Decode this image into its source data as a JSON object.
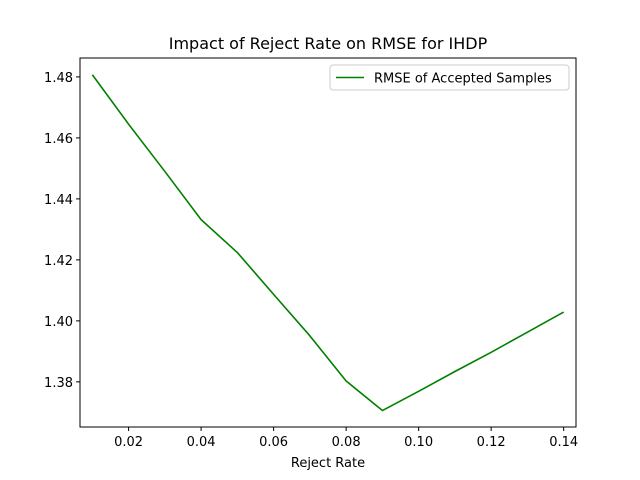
{
  "chart_data": {
    "type": "line",
    "title": "Impact of Reject Rate on RMSE for IHDP",
    "xlabel": "Reject Rate",
    "ylabel": "",
    "xlim": [
      0.0066,
      0.1434
    ],
    "ylim": [
      1.3652,
      1.4862
    ],
    "xticks": [
      0.02,
      0.04,
      0.06,
      0.08,
      0.1,
      0.12,
      0.14
    ],
    "xtick_labels": [
      "0.02",
      "0.04",
      "0.06",
      "0.08",
      "0.10",
      "0.12",
      "0.14"
    ],
    "yticks": [
      1.38,
      1.4,
      1.42,
      1.44,
      1.46,
      1.48
    ],
    "ytick_labels": [
      "1.38",
      "1.40",
      "1.42",
      "1.44",
      "1.46",
      "1.48"
    ],
    "grid": false,
    "legend_position": "top-right",
    "series": [
      {
        "name": "RMSE of Accepted Samples",
        "color": "#008000",
        "x": [
          0.01,
          0.02,
          0.03,
          0.04,
          0.05,
          0.06,
          0.07,
          0.08,
          0.09,
          0.1,
          0.11,
          0.12,
          0.13,
          0.14
        ],
        "y": [
          1.4807,
          1.4645,
          1.449,
          1.4332,
          1.4224,
          1.4087,
          1.3951,
          1.3803,
          1.3706,
          1.3769,
          1.3834,
          1.3897,
          1.3963,
          1.4029
        ]
      }
    ]
  }
}
